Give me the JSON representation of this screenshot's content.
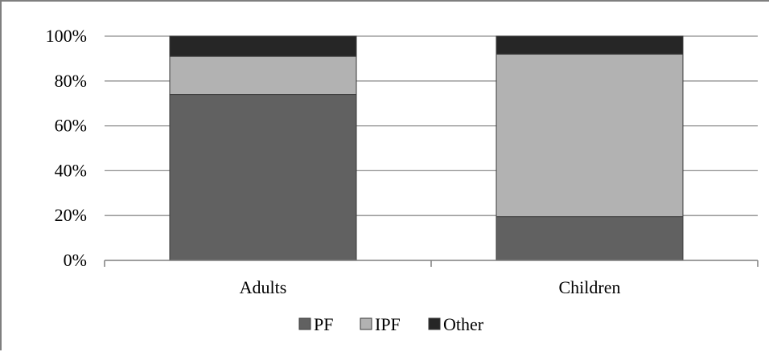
{
  "chart_data": {
    "type": "bar",
    "stacked": true,
    "categories": [
      "Adults",
      "Children"
    ],
    "series": [
      {
        "name": "PF",
        "color": "#616161",
        "values": [
          74,
          19.5
        ]
      },
      {
        "name": "IPF",
        "color": "#b2b2b2",
        "values": [
          17,
          72.5
        ]
      },
      {
        "name": "Other",
        "color": "#262626",
        "values": [
          9,
          8
        ]
      }
    ],
    "ylim": [
      0,
      100
    ],
    "yticks": [
      "0%",
      "20%",
      "40%",
      "60%",
      "80%",
      "100%"
    ],
    "grid": true,
    "legend_position": "bottom"
  }
}
